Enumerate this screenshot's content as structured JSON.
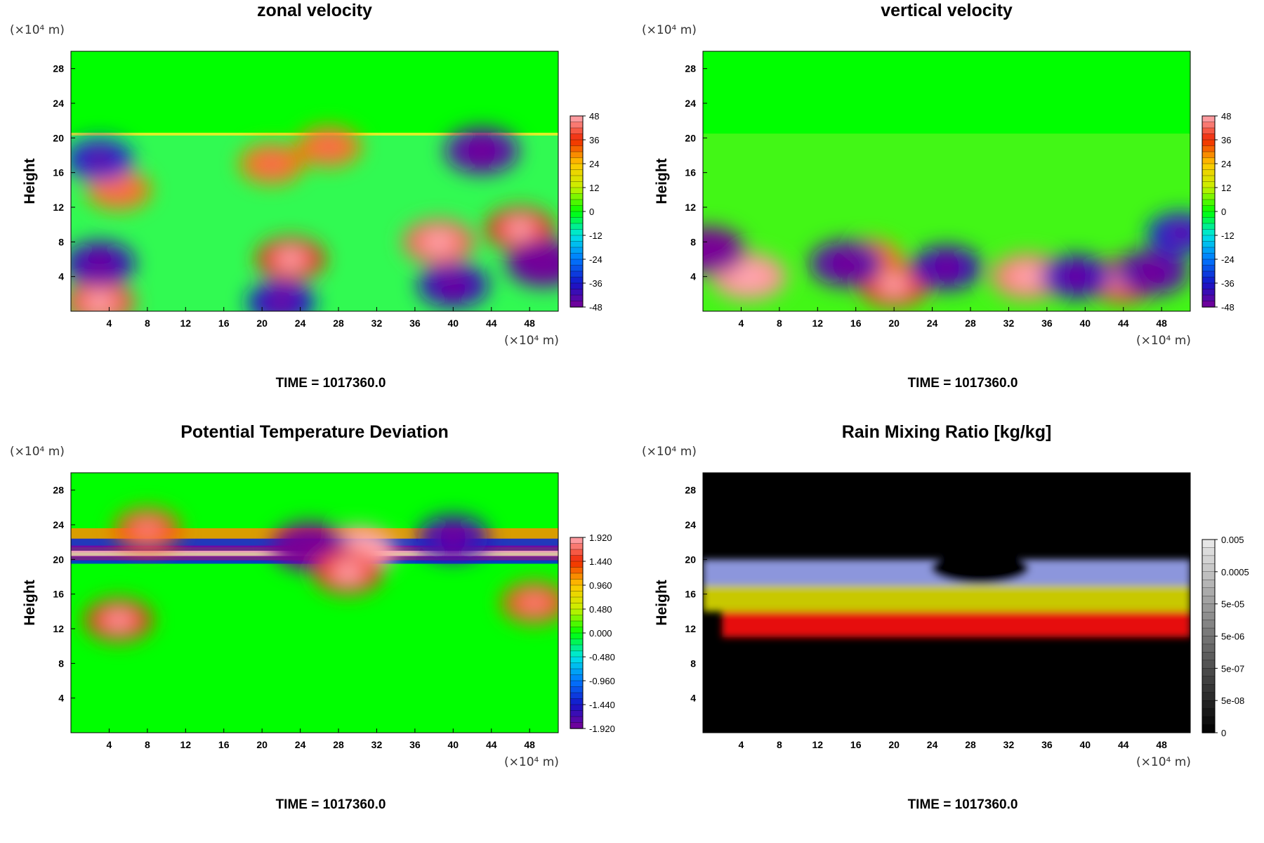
{
  "panels": [
    {
      "title": "zonal velocity",
      "ylabel": "Height",
      "y_unit": "(×10⁴ m)",
      "x_unit": "(×10⁴ m)",
      "time_label": "TIME = 1017360.0",
      "colorbar_labels": [
        "48",
        "36",
        "24",
        "12",
        "0",
        "-12",
        "-24",
        "-36",
        "-48"
      ],
      "colormap": "rainbow"
    },
    {
      "title": "vertical velocity",
      "ylabel": "Height",
      "y_unit": "(×10⁴ m)",
      "x_unit": "(×10⁴ m)",
      "time_label": "TIME = 1017360.0",
      "colorbar_labels": [
        "48",
        "36",
        "24",
        "12",
        "0",
        "-12",
        "-24",
        "-36",
        "-48"
      ],
      "colormap": "rainbow"
    },
    {
      "title": "Potential Temperature Deviation",
      "ylabel": "Height",
      "y_unit": "(×10⁴ m)",
      "x_unit": "(×10⁴ m)",
      "time_label": "TIME = 1017360.0",
      "colorbar_labels": [
        "1.920",
        "1.440",
        "0.960",
        "0.480",
        "0.000",
        "-0.480",
        "-0.960",
        "-1.440",
        "-1.920"
      ],
      "colormap": "rainbow"
    },
    {
      "title": "Rain Mixing Ratio [kg/kg]",
      "ylabel": "Height",
      "y_unit": "(×10⁴ m)",
      "x_unit": "(×10⁴ m)",
      "time_label": "TIME = 1017360.0",
      "colorbar_labels": [
        "0.005",
        "0.0005",
        "5e-05",
        "5e-06",
        "5e-07",
        "5e-08",
        "0"
      ],
      "colormap": "grayscale"
    }
  ],
  "chart_data": [
    {
      "type": "heatmap",
      "title": "zonal velocity",
      "ylabel": "Height",
      "x_ticks": [
        4,
        8,
        12,
        16,
        20,
        24,
        28,
        32,
        36,
        40,
        44,
        48
      ],
      "y_ticks": [
        4,
        8,
        12,
        16,
        20,
        24,
        28
      ],
      "xlim": [
        0,
        51
      ],
      "ylim": [
        0,
        30
      ],
      "colorbar": [
        -48,
        48
      ],
      "field": [
        {
          "x": 38.5,
          "y": 8,
          "value": 42
        },
        {
          "x": 23,
          "y": 6,
          "value": 36
        },
        {
          "x": 21,
          "y": 17,
          "value": 30
        },
        {
          "x": 5,
          "y": 14,
          "value": 30
        },
        {
          "x": 27,
          "y": 19,
          "value": 30
        },
        {
          "x": 47,
          "y": 9.5,
          "value": 36
        },
        {
          "x": 3,
          "y": 1,
          "value": 40
        },
        {
          "x": 3,
          "y": 5.5,
          "value": -40
        },
        {
          "x": 40,
          "y": 3,
          "value": -40
        },
        {
          "x": 49.5,
          "y": 5.5,
          "value": -46
        },
        {
          "x": 43,
          "y": 18.5,
          "value": -44
        },
        {
          "x": 3,
          "y": 17.5,
          "value": -34
        },
        {
          "x": 22,
          "y": 1,
          "value": -36
        }
      ]
    },
    {
      "type": "heatmap",
      "title": "vertical velocity",
      "ylabel": "Height",
      "x_ticks": [
        4,
        8,
        12,
        16,
        20,
        24,
        28,
        32,
        36,
        40,
        44,
        48
      ],
      "y_ticks": [
        4,
        8,
        12,
        16,
        20,
        24,
        28
      ],
      "xlim": [
        0,
        51
      ],
      "ylim": [
        0,
        30
      ],
      "colorbar": [
        -48,
        48
      ],
      "field": [
        {
          "x": 4.8,
          "y": 4,
          "value": 46
        },
        {
          "x": 34,
          "y": 4,
          "value": 44
        },
        {
          "x": 20,
          "y": 3,
          "value": 36
        },
        {
          "x": 44,
          "y": 3.5,
          "value": 36
        },
        {
          "x": 17.5,
          "y": 6,
          "value": 30
        },
        {
          "x": 0.5,
          "y": 7,
          "value": -48
        },
        {
          "x": 15,
          "y": 5.5,
          "value": -44
        },
        {
          "x": 25.5,
          "y": 5,
          "value": -40
        },
        {
          "x": 39,
          "y": 4,
          "value": -38
        },
        {
          "x": 47,
          "y": 4.5,
          "value": -44
        },
        {
          "x": 50,
          "y": 9,
          "value": -34
        }
      ]
    },
    {
      "type": "heatmap",
      "title": "Potential Temperature Deviation",
      "ylabel": "Height",
      "x_ticks": [
        4,
        8,
        12,
        16,
        20,
        24,
        28,
        32,
        36,
        40,
        44,
        48
      ],
      "y_ticks": [
        4,
        8,
        12,
        16,
        20,
        24,
        28
      ],
      "xlim": [
        0,
        51
      ],
      "ylim": [
        0,
        30
      ],
      "colorbar": [
        -1.92,
        1.92
      ],
      "field": [
        {
          "x": 8,
          "y": 23.5,
          "value": 1.3
        },
        {
          "x": 30,
          "y": 21,
          "value": 1.92
        },
        {
          "x": 25,
          "y": 21.5,
          "value": -1.92
        },
        {
          "x": 29,
          "y": 18.5,
          "value": 1.5
        },
        {
          "x": 5,
          "y": 13,
          "value": 1.4
        },
        {
          "x": 48.5,
          "y": 15,
          "value": 1.3
        },
        {
          "x": 40,
          "y": 22.5,
          "value": -1.6
        }
      ]
    },
    {
      "type": "heatmap",
      "title": "Rain Mixing Ratio [kg/kg]",
      "ylabel": "Height",
      "x_ticks": [
        4,
        8,
        12,
        16,
        20,
        24,
        28,
        32,
        36,
        40,
        44,
        48
      ],
      "y_ticks": [
        4,
        8,
        12,
        16,
        20,
        24,
        28
      ],
      "xlim": [
        0,
        51
      ],
      "ylim": [
        0,
        30
      ],
      "colorbar_levels": [
        0,
        5e-08,
        5e-07,
        5e-06,
        5e-05,
        0.0005,
        0.005
      ],
      "layers": [
        {
          "name_color": "red",
          "y_range": [
            11,
            14
          ],
          "x_range": [
            2,
            51
          ]
        },
        {
          "name_color": "yellow",
          "y_range": [
            14,
            17
          ],
          "x_range": [
            0,
            51
          ]
        },
        {
          "name_color": "blue",
          "y_range": [
            17,
            20
          ],
          "x_range": [
            0,
            51
          ]
        }
      ]
    }
  ]
}
